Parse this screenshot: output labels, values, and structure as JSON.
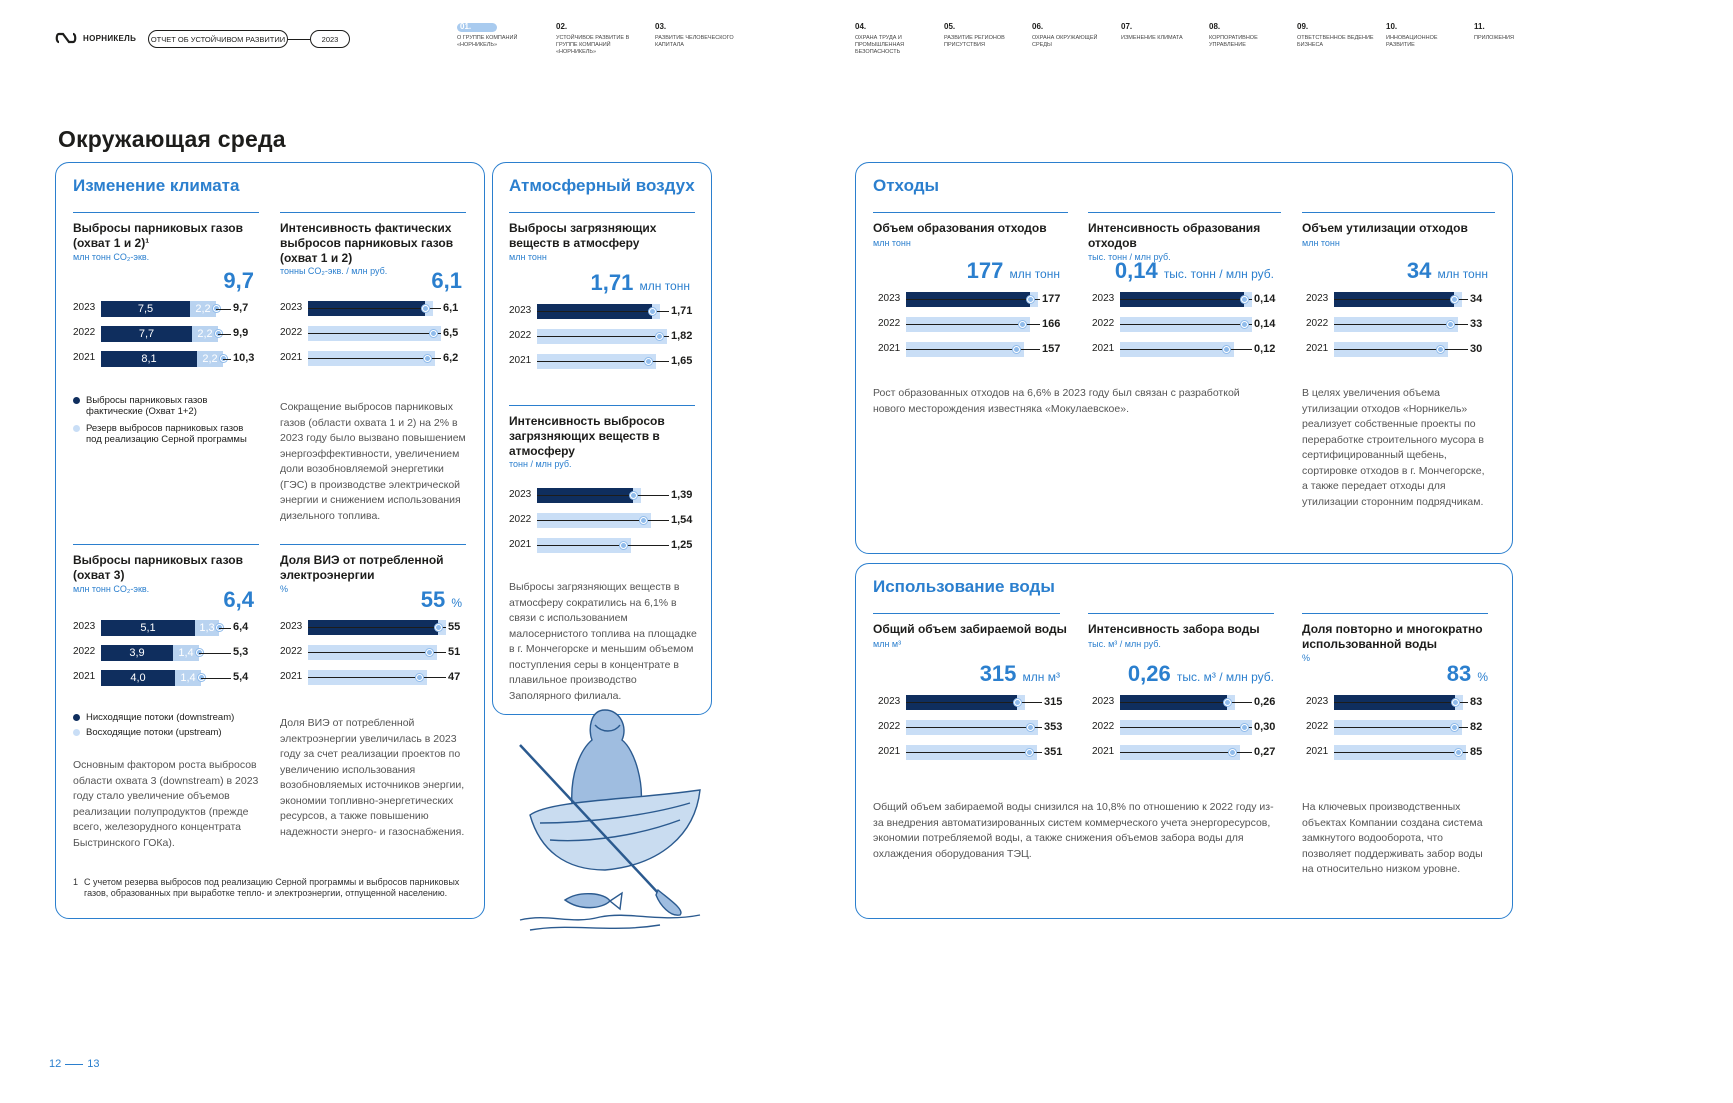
{
  "header": {
    "logo_text": "НОРНИКЕЛЬ",
    "report_label": "ОТЧЕТ ОБ УСТОЙЧИВОМ РАЗВИТИИ",
    "year": "2023",
    "nav": [
      {
        "num": "01.",
        "label": "О ГРУППЕ КОМПАНИЙ «НОРНИКЕЛЬ»",
        "active": true
      },
      {
        "num": "02.",
        "label": "УСТОЙЧИВОЕ РАЗВИТИЕ В ГРУППЕ КОМПАНИЙ «НОРНИКЕЛЬ»"
      },
      {
        "num": "03.",
        "label": "РАЗВИТИЕ ЧЕЛОВЕЧЕСКОГО КАПИТАЛА"
      },
      {
        "num": "04.",
        "label": "ОХРАНА ТРУДА И ПРОМЫШЛЕННАЯ БЕЗОПАСНОСТЬ"
      },
      {
        "num": "05.",
        "label": "РАЗВИТИЕ РЕГИОНОВ ПРИСУТСТВИЯ"
      },
      {
        "num": "06.",
        "label": "ОХРАНА ОКРУЖАЮЩЕЙ СРЕДЫ"
      },
      {
        "num": "07.",
        "label": "ИЗМЕНЕНИЕ КЛИМАТА"
      },
      {
        "num": "08.",
        "label": "КОРПОРАТИВНОЕ УПРАВЛЕНИЕ"
      },
      {
        "num": "09.",
        "label": "ОТВЕТСТВЕННОЕ ВЕДЕНИЕ БИЗНЕСА"
      },
      {
        "num": "10.",
        "label": "ИННОВАЦИОННОЕ РАЗВИТИЕ"
      },
      {
        "num": "11.",
        "label": "ПРИЛОЖЕНИЯ"
      }
    ]
  },
  "page_title": "Окружающая среда",
  "page_numbers": {
    "left": "12",
    "right": "13"
  },
  "climate": {
    "title": "Изменение климата",
    "ghg12": {
      "title": "Выбросы парниковых газов (охват 1 и 2)¹",
      "unit": "млн тонн CO₂-экв.",
      "big": "9,7"
    },
    "intensity": {
      "title": "Интенсивность фактических выбросов парниковых газов (охват 1 и 2)",
      "unit": "тонны CO₂-экв. / млн руб.",
      "big": "6,1",
      "text": "Сокращение выбросов парниковых газов (области охвата 1 и 2) на 2% в 2023 году было вызвано повышением энергоэффективности, увеличением доли возобновляемой энергетики (ГЭС) в производстве электрической энергии и снижением использования дизельного топлива."
    },
    "legend1": [
      "Выбросы парниковых газов фактические (Охват 1+2)",
      "Резерв выбросов парниковых газов под реализацию Серной программы"
    ],
    "ghg3": {
      "title": "Выбросы парниковых газов (охват 3)",
      "unit": "млн тонн CO₂-экв.",
      "big": "6,4",
      "text": "Основным фактором роста выбросов области охвата 3 (downstream) в 2023 году стало увеличение объемов реализации полупродуктов (прежде всего, железорудного концентрата Быстринского ГОКа)."
    },
    "legend2": [
      "Нисходящие потоки (downstream)",
      "Восходящие потоки (upstream)"
    ],
    "res": {
      "title": "Доля ВИЭ от потребленной электроэнергии",
      "unit": "%",
      "big": "55",
      "big_unit": "%",
      "text": "Доля ВИЭ от потребленной электроэнергии увеличилась в 2023 году за счет реализации проектов по увеличению использования возобновляемых источников энергии, экономии топливно-энергетических ресурсов, а также повышению надежности энерго- и газоснабжения."
    },
    "footnote_mark": "1",
    "footnote": "С учетом резерва выбросов под реализацию Серной программы и выбросов парниковых газов, образованных при выработке тепло- и электроэнергии, отпущенной населению."
  },
  "air": {
    "title": "Атмосферный воздух",
    "emissions": {
      "title": "Выбросы загрязняющих веществ в атмосферу",
      "unit": "млн тонн",
      "big": "1,71",
      "big_unit": "млн тонн"
    },
    "intensity": {
      "title": "Интенсивность выбросов загрязняющих веществ в атмосферу",
      "unit": "тонн / млн руб."
    },
    "text": "Выбросы загрязняющих веществ в атмосферу сократились на 6,1% в связи с использованием малосернистого топлива на площадке в г. Мончегорске и меньшим объемом поступления серы в концентрате в плавильное производство Заполярного филиала."
  },
  "waste": {
    "title": "Отходы",
    "generation": {
      "title": "Объем образования отходов",
      "unit": "млн тонн",
      "big": "177",
      "big_unit": "млн тонн"
    },
    "intensity": {
      "title": "Интенсивность образования отходов",
      "unit": "тыс. тонн / млн руб.",
      "big": "0,14",
      "big_unit": "тыс. тонн / млн руб."
    },
    "utilization": {
      "title": "Объем утилизации отходов",
      "unit": "млн тонн",
      "big": "34",
      "big_unit": "млн тонн"
    },
    "text1": "Рост образованных отходов на 6,6% в 2023 году был связан с разработкой нового месторождения известняка «Мокулаевское».",
    "text2": "В целях увеличения объема утилизации отходов «Норникель» реализует собственные проекты по переработке строительного мусора в сертифицированный щебень, сортировке отходов в г. Мончегорске, а также передает отходы для утилизации сторонним подрядчикам."
  },
  "water": {
    "title": "Использование воды",
    "withdrawal": {
      "title": "Общий объем забираемой воды",
      "unit": "млн м³",
      "big": "315",
      "big_unit": "млн м³"
    },
    "intensity": {
      "title": "Интенсивность забора воды",
      "unit": "тыс. м³ / млн руб.",
      "big": "0,26",
      "big_unit": "тыс. м³ / млн руб."
    },
    "reuse": {
      "title": "Доля повторно и многократно использованной воды",
      "unit": "%",
      "big": "83",
      "big_unit": "%"
    },
    "text1": "Общий объем забираемой воды снизился на 10,8% по отношению к 2022 году из-за внедрения автоматизированных систем коммерческого учета энергоресурсов, экономии потребляемой воды, а также снижения объемов забора воды для охлаждения оборудования ТЭЦ.",
    "text2": "На ключевых производственных объектах Компании создана система замкнутого водооборота, что позволяет поддерживать забор воды на относительно низком уровне."
  },
  "colors": {
    "accent": "#2b7fce",
    "dark": "#0f2e5e",
    "light": "#c9def6"
  },
  "chart_data": [
    {
      "id": "ghg12",
      "type": "bar",
      "stacked": true,
      "categories": [
        "2023",
        "2022",
        "2021"
      ],
      "series": [
        {
          "name": "Выбросы парниковых газов фактические (Охват 1+2)",
          "values": [
            7.5,
            7.7,
            8.1
          ],
          "labels": [
            "7,5",
            "7,7",
            "8,1"
          ]
        },
        {
          "name": "Резерв выбросов парниковых газов под реализацию Серной программы",
          "values": [
            2.2,
            2.2,
            2.2
          ],
          "labels": [
            "2,2",
            "2,2",
            "2,2"
          ]
        }
      ],
      "totals": [
        "9,7",
        "9,9",
        "10,3"
      ],
      "max": 10.3
    },
    {
      "id": "ghg_int",
      "type": "bar",
      "categories": [
        "2023",
        "2022",
        "2021"
      ],
      "values": [
        6.1,
        6.5,
        6.2
      ],
      "labels": [
        "6,1",
        "6,5",
        "6,2"
      ],
      "max": 6.5
    },
    {
      "id": "ghg3",
      "type": "bar",
      "stacked": true,
      "categories": [
        "2023",
        "2022",
        "2021"
      ],
      "series": [
        {
          "name": "Нисходящие потоки (downstream)",
          "values": [
            5.1,
            3.9,
            4.0
          ],
          "labels": [
            "5,1",
            "3,9",
            "4,0"
          ]
        },
        {
          "name": "Восходящие потоки (upstream)",
          "values": [
            1.3,
            1.4,
            1.4
          ],
          "labels": [
            "1,3",
            "1,4",
            "1,4"
          ]
        }
      ],
      "totals": [
        "6,4",
        "5,3",
        "5,4"
      ],
      "max": 6.4
    },
    {
      "id": "res",
      "type": "bar",
      "categories": [
        "2023",
        "2022",
        "2021"
      ],
      "values": [
        55,
        51,
        47
      ],
      "labels": [
        "55",
        "51",
        "47"
      ],
      "max": 55
    },
    {
      "id": "air_em",
      "type": "bar",
      "categories": [
        "2023",
        "2022",
        "2021"
      ],
      "values": [
        1.71,
        1.82,
        1.65
      ],
      "labels": [
        "1,71",
        "1,82",
        "1,65"
      ],
      "max": 1.82
    },
    {
      "id": "air_int",
      "type": "bar",
      "categories": [
        "2023",
        "2022",
        "2021"
      ],
      "values": [
        1.39,
        1.54,
        1.25
      ],
      "labels": [
        "1,39",
        "1,54",
        "1,25"
      ],
      "max": 1.54
    },
    {
      "id": "waste_gen",
      "type": "bar",
      "categories": [
        "2023",
        "2022",
        "2021"
      ],
      "values": [
        177,
        166,
        157
      ],
      "labels": [
        "177",
        "166",
        "157"
      ],
      "max": 177
    },
    {
      "id": "waste_int",
      "type": "bar",
      "categories": [
        "2023",
        "2022",
        "2021"
      ],
      "values": [
        0.14,
        0.14,
        0.12
      ],
      "labels": [
        "0,14",
        "0,14",
        "0,12"
      ],
      "max": 0.14
    },
    {
      "id": "waste_util",
      "type": "bar",
      "categories": [
        "2023",
        "2022",
        "2021"
      ],
      "values": [
        34,
        33,
        30
      ],
      "labels": [
        "34",
        "33",
        "30"
      ],
      "max": 34
    },
    {
      "id": "water_w",
      "type": "bar",
      "categories": [
        "2023",
        "2022",
        "2021"
      ],
      "values": [
        315,
        353,
        351
      ],
      "labels": [
        "315",
        "353",
        "351"
      ],
      "max": 353
    },
    {
      "id": "water_int",
      "type": "bar",
      "categories": [
        "2023",
        "2022",
        "2021"
      ],
      "values": [
        0.26,
        0.3,
        0.27
      ],
      "labels": [
        "0,26",
        "0,30",
        "0,27"
      ],
      "max": 0.3
    },
    {
      "id": "water_reuse",
      "type": "bar",
      "categories": [
        "2023",
        "2022",
        "2021"
      ],
      "values": [
        83,
        82,
        85
      ],
      "labels": [
        "83",
        "82",
        "85"
      ],
      "max": 85
    }
  ]
}
